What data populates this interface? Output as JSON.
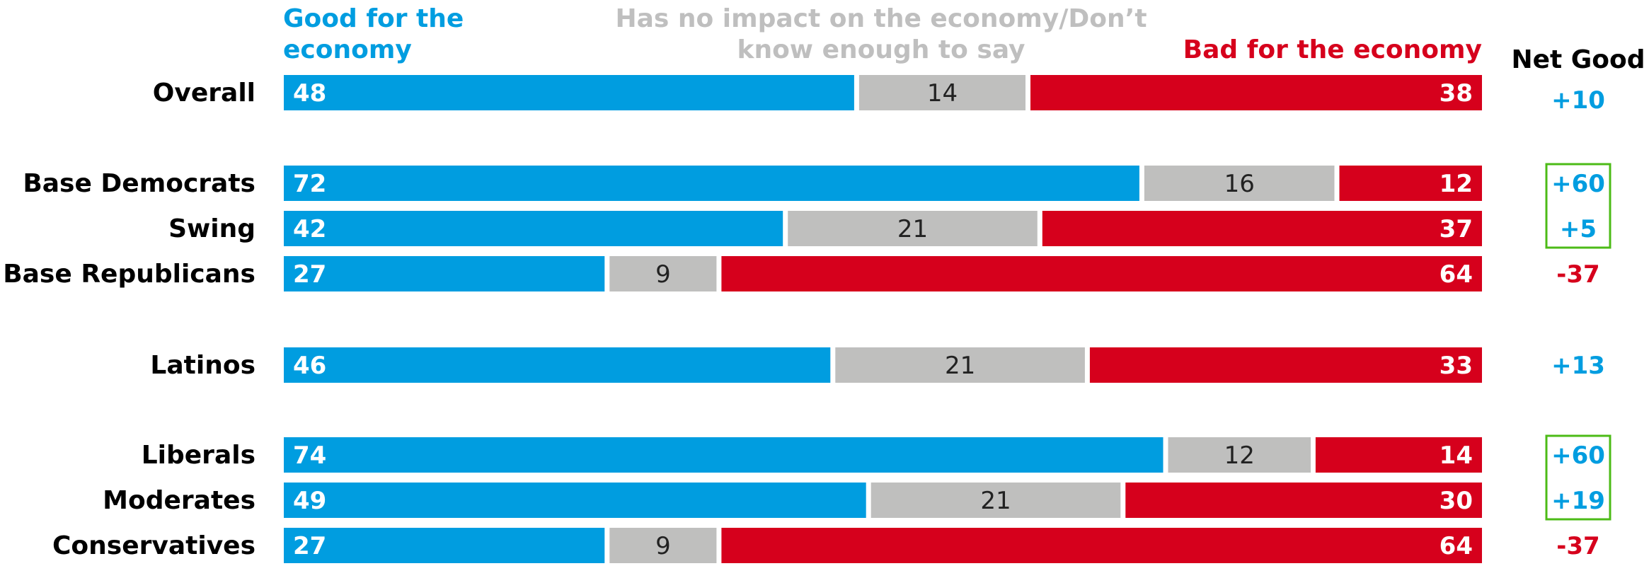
{
  "colors": {
    "good": "#009DE0",
    "neutral": "#BFBFBE",
    "bad": "#D6001C",
    "net_positive": "#009DE0",
    "net_negative": "#D6001C",
    "highlight_box": "#4CBB17",
    "header_neutral": "#BFBFBF"
  },
  "legend": {
    "good_line1": "Good for the",
    "good_line2": "economy",
    "neutral_line1": "Has no impact on the economy/Don’t",
    "neutral_line2": "know enough to say",
    "bad": "Bad for the economy",
    "net_header": "Net Good"
  },
  "chart_data": {
    "type": "bar",
    "orientation": "horizontal",
    "stacked": true,
    "normalized_to": 100,
    "categories": [
      "Overall",
      "Base Democrats",
      "Swing",
      "Base Republicans",
      "Latinos",
      "Liberals",
      "Moderates",
      "Conservatives"
    ],
    "series": [
      {
        "name": "Good for the economy",
        "values": [
          48,
          72,
          42,
          27,
          46,
          74,
          49,
          27
        ]
      },
      {
        "name": "Has no impact on the economy/Don’t know enough to say",
        "values": [
          14,
          16,
          21,
          9,
          21,
          12,
          21,
          9
        ]
      },
      {
        "name": "Bad for the economy",
        "values": [
          38,
          12,
          37,
          64,
          33,
          14,
          30,
          64
        ]
      }
    ],
    "net_good": {
      "name": "Net Good",
      "values": [
        "+10",
        "+60",
        "+5",
        "-37",
        "+13",
        "+60",
        "+19",
        "-37"
      ]
    },
    "highlighted_groups": [
      [
        "Base Democrats",
        "Swing"
      ],
      [
        "Liberals",
        "Moderates"
      ]
    ],
    "legend_position": "top"
  }
}
